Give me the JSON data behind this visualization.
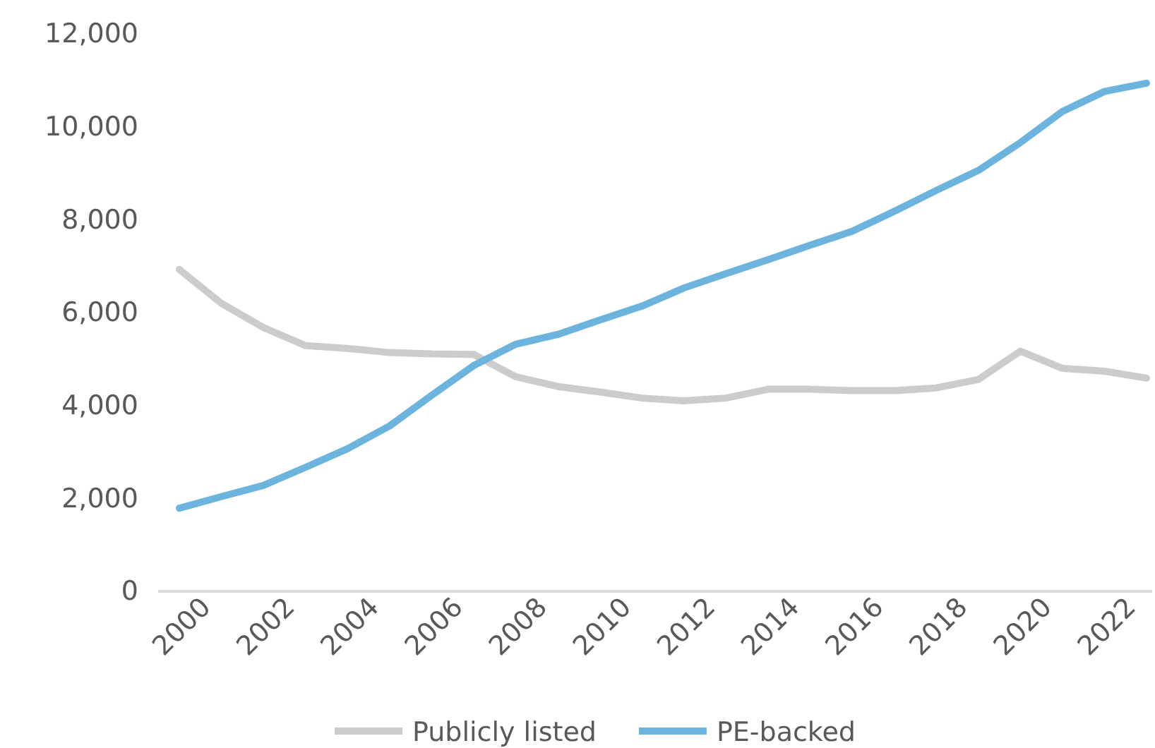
{
  "chart_data": {
    "type": "line",
    "categories": [
      "2000",
      null,
      "2002",
      null,
      "2004",
      null,
      "2006",
      null,
      "2008",
      null,
      "2010",
      null,
      "2012",
      null,
      "2014",
      null,
      "2016",
      null,
      "2018",
      null,
      "2020",
      null,
      "2022",
      null
    ],
    "series": [
      {
        "name": "Publicly listed",
        "color": "#cccccc",
        "values": [
          6930,
          6200,
          5680,
          5290,
          5230,
          5140,
          5110,
          5100,
          4620,
          4410,
          4290,
          4160,
          4100,
          4160,
          4350,
          4350,
          4320,
          4320,
          4380,
          4560,
          5170,
          4800,
          4740,
          4590
        ]
      },
      {
        "name": "PE-backed",
        "color": "#6cb4de",
        "values": [
          1790,
          2040,
          2280,
          2670,
          3070,
          3560,
          4220,
          4860,
          5320,
          5530,
          5840,
          6140,
          6530,
          6840,
          7140,
          7450,
          7750,
          8180,
          8630,
          9060,
          9660,
          10330,
          10760,
          10940
        ]
      }
    ],
    "ylim": [
      0,
      12000
    ],
    "yticks": [
      {
        "value": 0,
        "label": "0"
      },
      {
        "value": 2000,
        "label": "2,000"
      },
      {
        "value": 4000,
        "label": "4,000"
      },
      {
        "value": 6000,
        "label": "6,000"
      },
      {
        "value": 8000,
        "label": "8,000"
      },
      {
        "value": 10000,
        "label": "10,000"
      },
      {
        "value": 12000,
        "label": "12,000"
      }
    ],
    "grid": false,
    "legend": "bottom",
    "marker": "none",
    "line_style": "solid"
  }
}
